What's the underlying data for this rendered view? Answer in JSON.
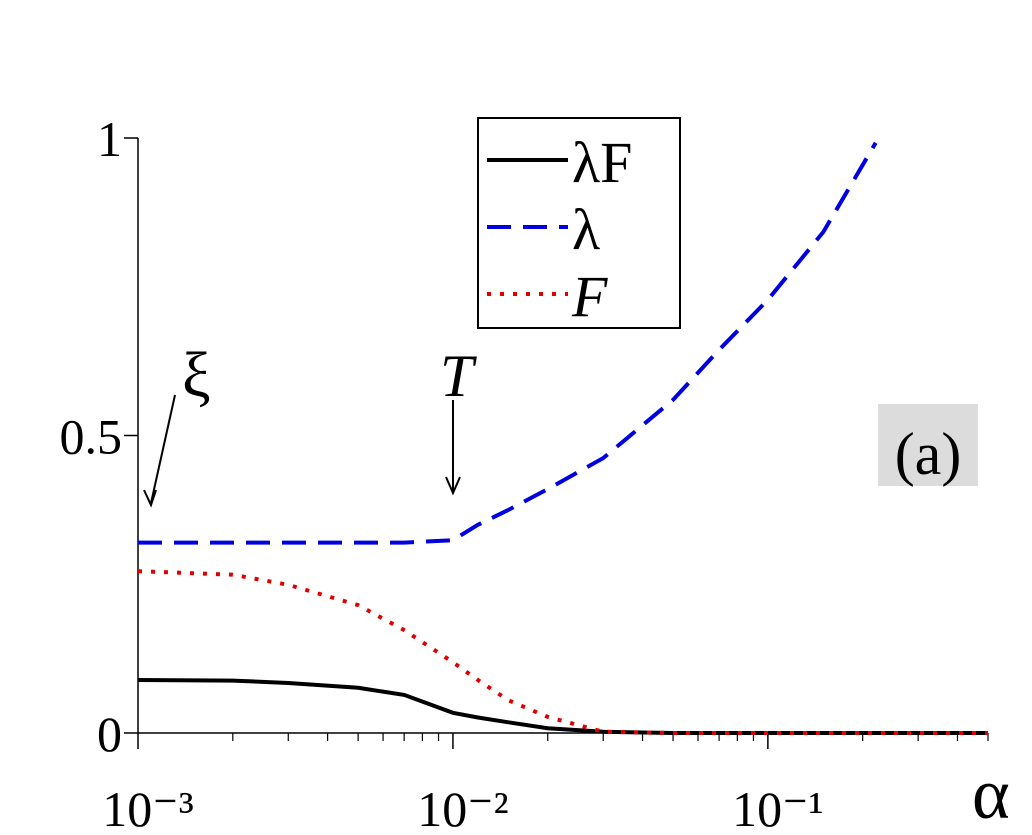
{
  "chart_data": {
    "type": "line",
    "x_label": "α",
    "x": [
      0.001,
      0.002,
      0.003,
      0.005,
      0.007,
      0.01,
      0.012,
      0.015,
      0.02,
      0.03,
      0.05,
      0.07,
      0.1,
      0.15,
      0.22,
      0.5
    ],
    "series": [
      {
        "name": "λF",
        "color": "#000000",
        "dash": "solid",
        "values": [
          0.089,
          0.088,
          0.084,
          0.076,
          0.064,
          0.034,
          0.026,
          0.018,
          0.008,
          0.002,
          0,
          0,
          0,
          0,
          0,
          0
        ]
      },
      {
        "name": "λ",
        "color": "#0000e0",
        "dash": "dashed",
        "values": [
          0.32,
          0.32,
          0.32,
          0.32,
          0.32,
          0.324,
          0.35,
          0.375,
          0.41,
          0.462,
          0.56,
          0.644,
          0.728,
          0.842,
          0.992,
          null
        ]
      },
      {
        "name": "F",
        "color": "#e00000",
        "dash": "dotted",
        "values": [
          0.272,
          0.266,
          0.249,
          0.215,
          0.173,
          0.119,
          0.089,
          0.055,
          0.027,
          0.002,
          0,
          0,
          0,
          0,
          0,
          0
        ]
      }
    ],
    "xscale": "log",
    "xlim": [
      0.001,
      0.5
    ],
    "xticks": [
      {
        "value": 0.001,
        "label": "10⁻³"
      },
      {
        "value": 0.01,
        "label": "10⁻²"
      },
      {
        "value": 0.1,
        "label": "10⁻¹"
      }
    ],
    "xminorticks": [
      0.002,
      0.003,
      0.004,
      0.005,
      0.006,
      0.007,
      0.008,
      0.009,
      0.02,
      0.03,
      0.04,
      0.05,
      0.06,
      0.07,
      0.08,
      0.09,
      0.2,
      0.3,
      0.4,
      0.5
    ],
    "ylim": [
      0,
      1
    ],
    "yticks": [
      0,
      0.5,
      1
    ],
    "grid": false,
    "legend": "top-center",
    "annotations": [
      "ξ",
      "T",
      "(a)"
    ]
  }
}
